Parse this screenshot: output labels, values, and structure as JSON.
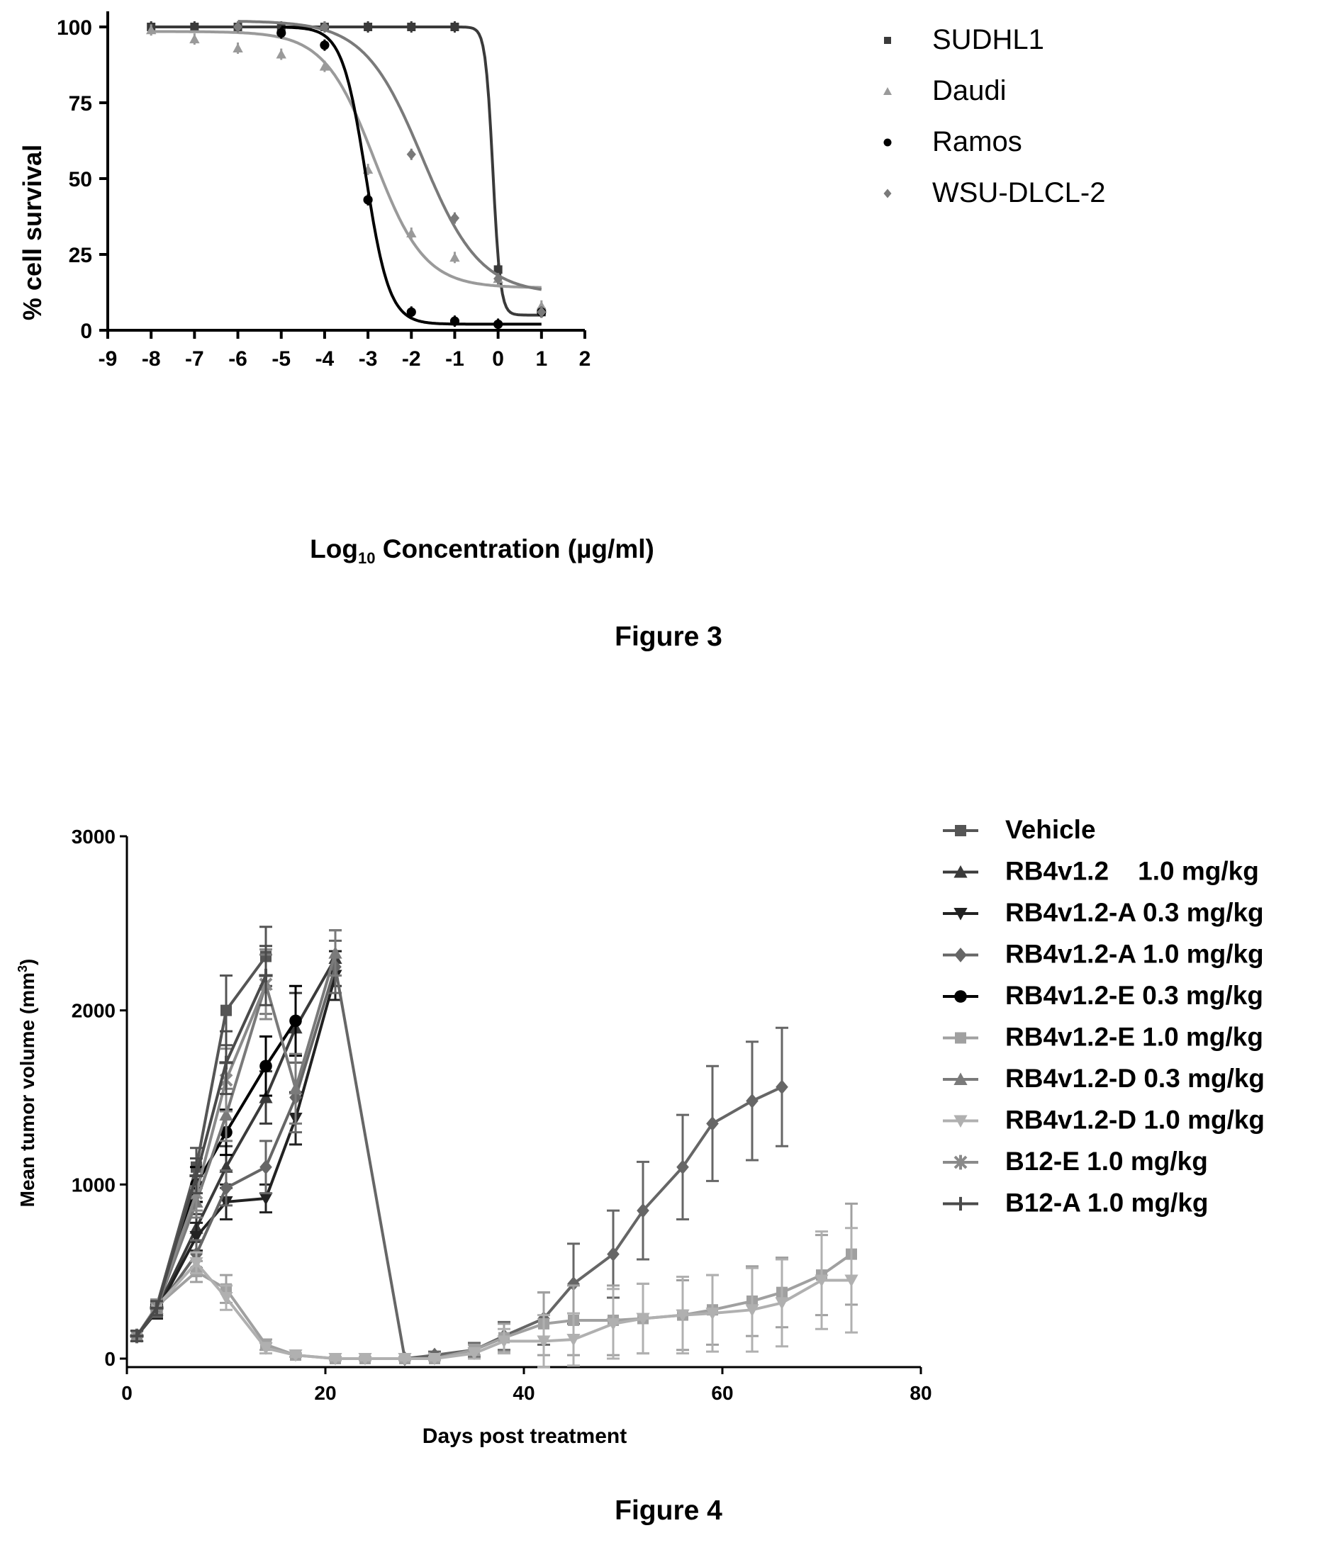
{
  "figures": [
    {
      "caption": "Figure 3"
    },
    {
      "caption": "Figure 4"
    }
  ],
  "chart_data": [
    {
      "type": "scatter",
      "title": "",
      "xlabel_base": "Log",
      "xlabel_sub": "10",
      "xlabel_rest": " Concentration (µg/ml)",
      "ylabel": "% cell survival",
      "xlim": [
        -9,
        2
      ],
      "ylim": [
        0,
        100
      ],
      "x_ticks": [
        "-9",
        "-8",
        "-7",
        "-6",
        "-5",
        "-4",
        "-3",
        "-2",
        "-1",
        "0",
        "1",
        "2"
      ],
      "y_ticks": [
        "0",
        "25",
        "50",
        "75",
        "100"
      ],
      "legend_position": "top-right",
      "series": [
        {
          "name": "SUDHL1",
          "marker": "square",
          "color": "#3a3a3a",
          "x": [
            -8,
            -7,
            -6,
            -5,
            -4,
            -3,
            -2,
            -1,
            0,
            1
          ],
          "y": [
            100,
            100,
            100,
            100,
            100,
            100,
            100,
            100,
            20,
            6
          ],
          "fit": {
            "top": 100,
            "bottom": 5,
            "ic50": -0.12,
            "hill": 5
          },
          "fit_range": [
            -8,
            1
          ]
        },
        {
          "name": "Daudi",
          "marker": "triangle",
          "color": "#9a9a9a",
          "x": [
            -8,
            -7,
            -6,
            -5,
            -4,
            -3,
            -2,
            -1,
            0,
            1
          ],
          "y": [
            99,
            96,
            93,
            91,
            87,
            53,
            32,
            24,
            17,
            8
          ],
          "fit": {
            "top": 98.5,
            "bottom": 14,
            "ic50": -2.85,
            "hill": 0.75
          },
          "fit_range": [
            -8,
            1
          ]
        },
        {
          "name": "Ramos",
          "marker": "circle",
          "color": "#000000",
          "x": [
            -5,
            -4,
            -3,
            -2,
            -1,
            0,
            1
          ],
          "y": [
            98,
            94,
            43,
            6,
            3,
            2,
            6
          ],
          "fit": {
            "top": 100,
            "bottom": 2,
            "ic50": -3.05,
            "hill": 1.6
          },
          "fit_range": [
            -5,
            1
          ]
        },
        {
          "name": "WSU-DLCL-2",
          "marker": "diamond",
          "color": "#7a7a7a",
          "x": [
            -6,
            -4,
            -2,
            -1,
            0,
            1
          ],
          "y": [
            100,
            100,
            58,
            37,
            17,
            6
          ],
          "fit": {
            "top": 102,
            "bottom": 12,
            "ic50": -1.75,
            "hill": 0.65
          },
          "fit_range": [
            -6,
            1
          ]
        }
      ]
    },
    {
      "type": "line",
      "title": "",
      "xlabel": "Days post treatment",
      "ylabel": "Mean tumor volume (mm",
      "ylabel_sup": "3",
      "ylabel_close": ")",
      "xlim": [
        0,
        80
      ],
      "ylim": [
        0,
        3000
      ],
      "x_ticks": [
        "0",
        "20",
        "40",
        "60",
        "80"
      ],
      "y_ticks": [
        "0",
        "1000",
        "2000",
        "3000"
      ],
      "legend_position": "right",
      "series": [
        {
          "name": "Vehicle",
          "marker": "square",
          "color": "#555555",
          "x": [
            1,
            3,
            7,
            10,
            14
          ],
          "y": [
            130,
            300,
            1100,
            2000,
            2310
          ],
          "err": [
            30,
            40,
            110,
            200,
            170
          ]
        },
        {
          "name": "RB4v1.2    1.0 mg/kg",
          "marker": "triangle",
          "color": "#3a3a3a",
          "x": [
            1,
            3,
            7,
            10,
            14,
            17,
            21
          ],
          "y": [
            130,
            280,
            750,
            1100,
            1500,
            1900,
            2300
          ],
          "err": [
            30,
            40,
            80,
            120,
            150,
            200,
            160
          ]
        },
        {
          "name": "RB4v1.2-A 0.3 mg/kg",
          "marker": "triangle-down",
          "color": "#222222",
          "x": [
            1,
            3,
            7,
            10,
            14,
            17,
            21
          ],
          "y": [
            130,
            270,
            700,
            900,
            920,
            1380,
            2200
          ],
          "err": [
            30,
            40,
            80,
            100,
            80,
            150,
            140
          ]
        },
        {
          "name": "RB4v1.2-A 1.0 mg/kg",
          "marker": "diamond",
          "color": "#666666",
          "x": [
            1,
            3,
            7,
            10,
            14,
            17,
            21,
            28,
            31,
            35,
            38,
            42,
            45,
            49,
            52,
            56,
            59,
            63,
            66
          ],
          "y": [
            130,
            280,
            600,
            980,
            1100,
            1500,
            2250,
            0,
            20,
            50,
            130,
            230,
            430,
            600,
            850,
            1100,
            1350,
            1480,
            1560
          ],
          "err": [
            30,
            40,
            80,
            100,
            150,
            200,
            150,
            10,
            20,
            40,
            80,
            150,
            230,
            250,
            280,
            300,
            330,
            340,
            340
          ]
        },
        {
          "name": "RB4v1.2-E 0.3 mg/kg",
          "marker": "circle",
          "color": "#000000",
          "x": [
            1,
            3,
            7,
            10,
            14,
            17
          ],
          "y": [
            130,
            290,
            1000,
            1300,
            1680,
            1940
          ],
          "err": [
            30,
            40,
            100,
            130,
            170,
            200
          ]
        },
        {
          "name": "RB4v1.2-E 1.0 mg/kg",
          "marker": "square",
          "color": "#a0a0a0",
          "x": [
            1,
            3,
            7,
            10,
            14,
            17,
            21,
            24,
            28,
            31,
            35,
            38,
            42,
            45,
            49,
            52,
            56,
            59,
            63,
            66,
            70,
            73
          ],
          "y": [
            130,
            300,
            500,
            400,
            80,
            20,
            0,
            0,
            0,
            0,
            50,
            120,
            200,
            220,
            220,
            230,
            250,
            280,
            330,
            380,
            480,
            600
          ],
          "err": [
            30,
            40,
            60,
            80,
            30,
            10,
            10,
            10,
            10,
            10,
            30,
            80,
            180,
            200,
            200,
            200,
            200,
            200,
            200,
            200,
            230,
            290
          ]
        },
        {
          "name": "RB4v1.2-D 0.3 mg/kg",
          "marker": "triangle",
          "color": "#7a7a7a",
          "x": [
            1,
            3,
            7,
            10,
            14,
            17,
            21
          ],
          "y": [
            130,
            290,
            900,
            1400,
            2150,
            1550,
            2330
          ],
          "err": [
            30,
            40,
            90,
            150,
            170,
            200,
            130
          ]
        },
        {
          "name": "RB4v1.2-D 1.0 mg/kg",
          "marker": "triangle-down",
          "color": "#b0b0b0",
          "x": [
            1,
            3,
            7,
            10,
            14,
            17,
            21,
            24,
            28,
            31,
            35,
            38,
            42,
            45,
            49,
            52,
            56,
            59,
            63,
            66,
            70,
            73
          ],
          "y": [
            130,
            300,
            550,
            350,
            60,
            20,
            0,
            0,
            0,
            0,
            30,
            100,
            100,
            110,
            200,
            230,
            250,
            260,
            280,
            320,
            450,
            450
          ],
          "err": [
            30,
            40,
            60,
            70,
            30,
            10,
            10,
            10,
            10,
            10,
            30,
            70,
            150,
            150,
            200,
            200,
            220,
            220,
            240,
            250,
            280,
            300
          ]
        },
        {
          "name": "B12-E 1.0 mg/kg",
          "marker": "star",
          "color": "#8a8a8a",
          "x": [
            1,
            3,
            7,
            10,
            14
          ],
          "y": [
            130,
            300,
            950,
            1600,
            2150
          ],
          "err": [
            30,
            40,
            100,
            180,
            200
          ]
        },
        {
          "name": "B12-A 1.0 mg/kg",
          "marker": "plus",
          "color": "#4a4a4a",
          "x": [
            1,
            3,
            7,
            10,
            14
          ],
          "y": [
            130,
            290,
            1050,
            1700,
            2200
          ],
          "err": [
            30,
            40,
            100,
            180,
            170
          ]
        }
      ]
    }
  ]
}
